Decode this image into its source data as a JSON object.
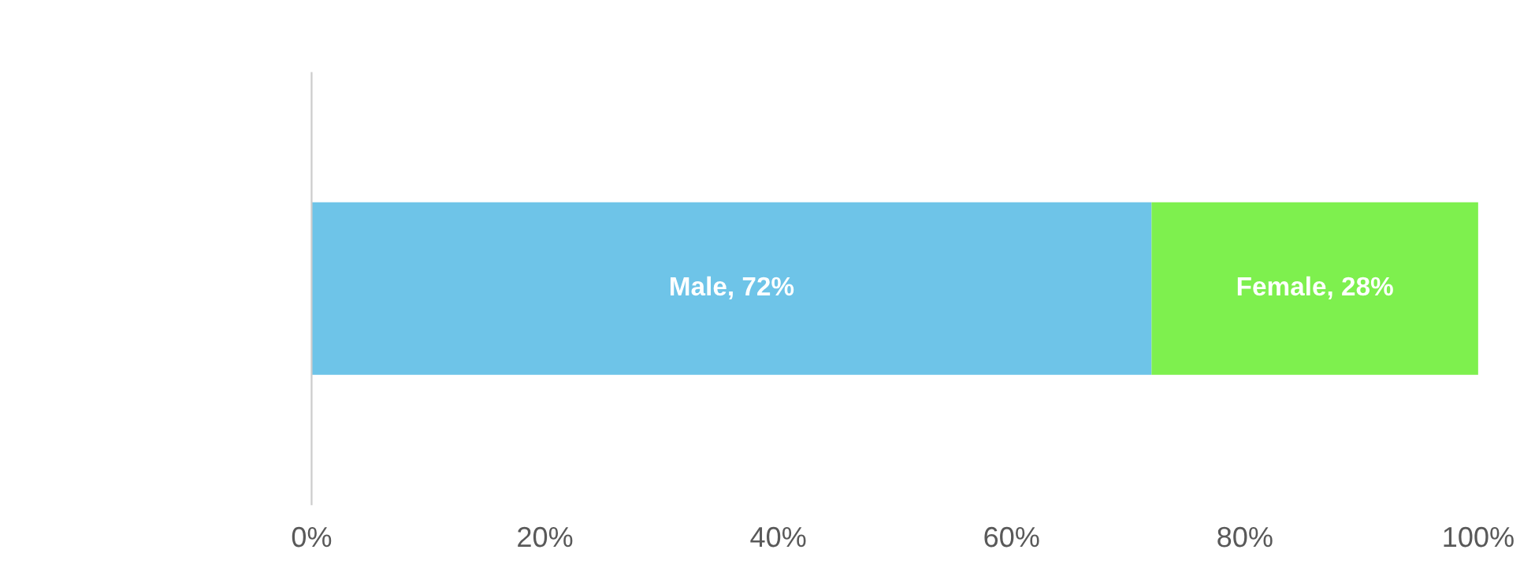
{
  "chart_data": {
    "type": "bar",
    "orientation": "horizontal",
    "stacked": true,
    "categories": [
      null
    ],
    "series": [
      {
        "color": "#6ec4e8",
        "values": [
          72
        ],
        "value_labels": [
          "Male, 72%"
        ]
      },
      {
        "color": "#7ef04e",
        "values": [
          28
        ],
        "value_labels": [
          "Female, 28%"
        ]
      }
    ],
    "xlim": [
      0,
      100
    ],
    "xticks": [
      {
        "value": 0,
        "label": "0%"
      },
      {
        "value": 20,
        "label": "20%"
      },
      {
        "value": 40,
        "label": "40%"
      },
      {
        "value": 60,
        "label": "60%"
      },
      {
        "value": 80,
        "label": "80%"
      },
      {
        "value": 100,
        "label": "100%"
      }
    ],
    "grid": false,
    "legend": false
  }
}
